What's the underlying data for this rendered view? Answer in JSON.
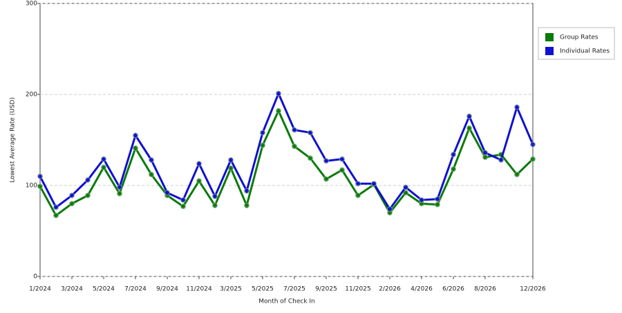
{
  "chart_data": {
    "type": "line",
    "ylabel": "Lowest Average Rate (USD)",
    "xlabel": "Month of Check In",
    "categories": [
      "1/2024",
      null,
      "3/2024",
      null,
      "5/2024",
      null,
      "7/2024",
      null,
      "9/2024",
      null,
      "11/2024",
      null,
      "3/2025",
      null,
      "5/2025",
      null,
      "7/2025",
      null,
      "9/2025",
      null,
      "11/2025",
      null,
      "2/2026",
      null,
      "4/2026",
      null,
      "6/2026",
      null,
      "8/2026",
      null,
      null,
      "12/2026"
    ],
    "series": [
      {
        "name": "Group Rates",
        "color": "#0a7a0a",
        "values": [
          99,
          67,
          80,
          89,
          120,
          91,
          141,
          112,
          89,
          77,
          105,
          78,
          119,
          78,
          144,
          182,
          143,
          130,
          107,
          117,
          89,
          101,
          70,
          92,
          80,
          79,
          118,
          163,
          131,
          134,
          112,
          129
        ]
      },
      {
        "name": "Individual Rates",
        "color": "#1010d0",
        "values": [
          110,
          76,
          89,
          106,
          129,
          98,
          155,
          128,
          92,
          84,
          124,
          88,
          128,
          94,
          158,
          201,
          161,
          158,
          127,
          129,
          102,
          102,
          74,
          98,
          84,
          85,
          134,
          176,
          136,
          128,
          186,
          145
        ]
      }
    ],
    "ylim": [
      0,
      300
    ],
    "yticks": [
      0,
      100,
      200,
      300
    ],
    "grid": true,
    "legend": "right"
  }
}
